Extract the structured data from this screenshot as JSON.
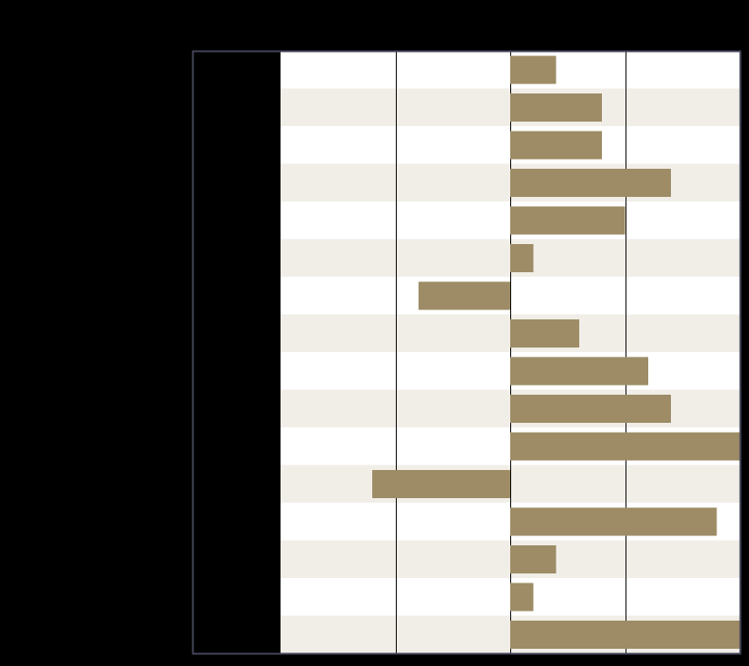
{
  "chart_data": {
    "type": "bar",
    "orientation": "horizontal",
    "title": "",
    "xlabel": "",
    "ylabel": "",
    "categories": [
      "",
      "",
      "",
      "",
      "",
      "",
      "",
      "",
      "",
      "",
      "",
      "",
      "",
      "",
      "",
      ""
    ],
    "values": [
      2,
      4,
      4,
      7,
      5,
      1,
      -4,
      3,
      6,
      7,
      10,
      -6,
      9,
      2,
      1,
      10
    ],
    "xlim": [
      -10,
      10
    ],
    "grid": true,
    "legend": "none",
    "colors": {
      "bar": "#9d8c65",
      "band_light": "#ffffff",
      "band_alt": "#f1eee8",
      "label_column": "#000000",
      "background": "#000000",
      "gridline": "#000000",
      "frame": "#44465a"
    }
  }
}
